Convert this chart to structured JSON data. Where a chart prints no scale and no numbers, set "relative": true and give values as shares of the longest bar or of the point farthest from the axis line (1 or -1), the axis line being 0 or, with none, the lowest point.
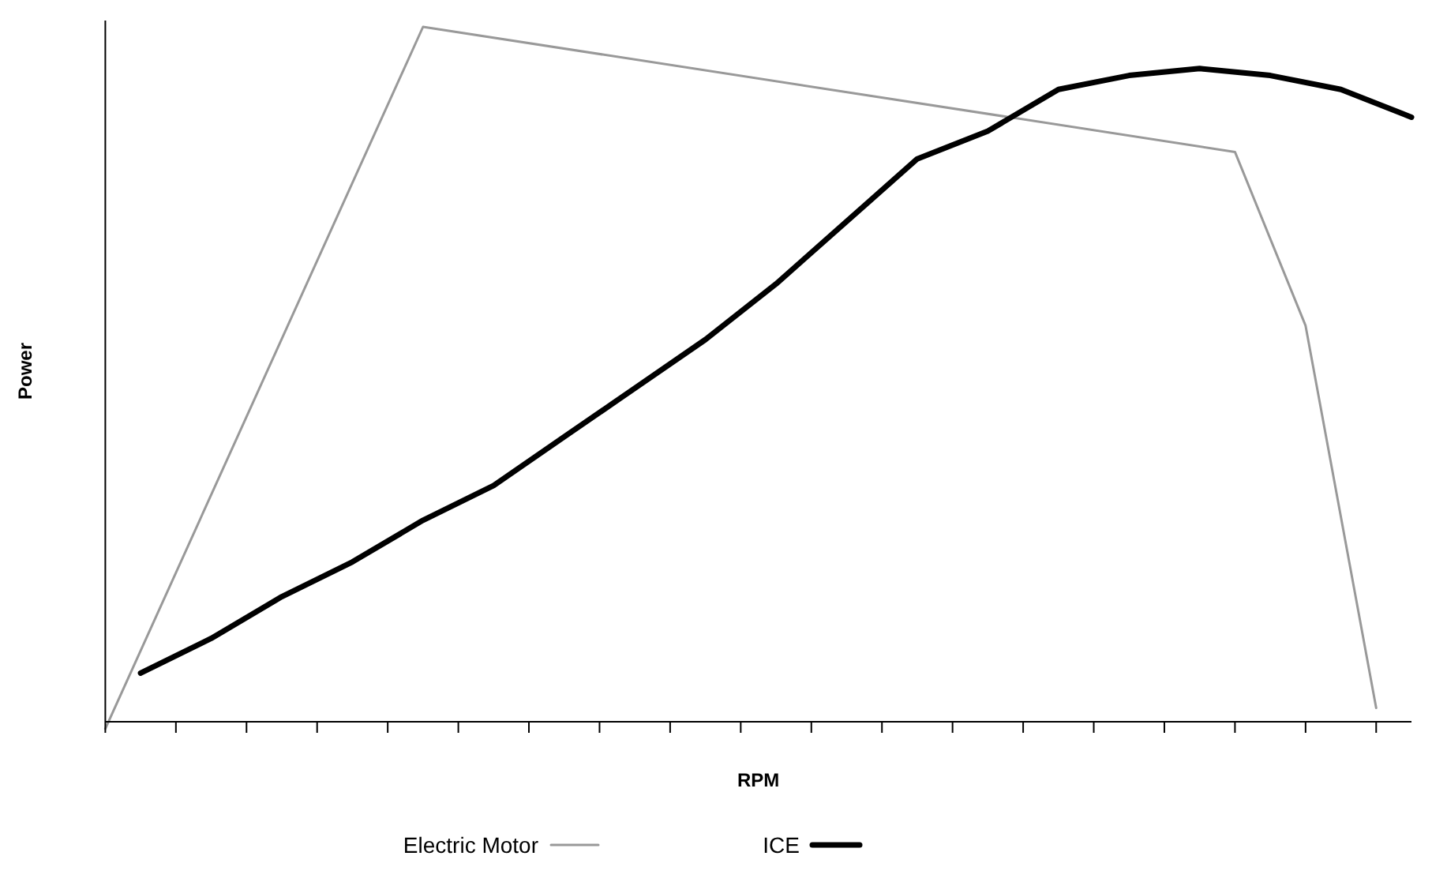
{
  "chart_data": {
    "type": "line",
    "xlabel": "RPM",
    "ylabel": "Power",
    "relative": true,
    "categories": [
      null,
      null,
      null,
      null,
      null,
      null,
      null,
      null,
      null,
      null,
      null,
      null,
      null,
      null,
      null,
      null,
      null,
      null,
      null,
      null,
      null,
      null,
      null,
      null,
      null,
      null,
      null,
      null,
      null,
      null,
      null,
      null,
      null,
      null,
      null,
      null,
      null,
      null
    ],
    "legend": "bottom",
    "series": [
      {
        "name": "Electric Motor",
        "color": "#999999",
        "values": [
          -0.01,
          null,
          null,
          null,
          null,
          null,
          null,
          null,
          null,
          1,
          null,
          null,
          null,
          null,
          null,
          null,
          null,
          null,
          null,
          null,
          null,
          null,
          null,
          null,
          null,
          null,
          null,
          null,
          null,
          null,
          null,
          null,
          0.82,
          null,
          0.57,
          null,
          0.02,
          null
        ]
      },
      {
        "name": "ICE",
        "color": "#000000",
        "values": [
          null,
          0.07,
          null,
          0.12,
          null,
          0.18,
          null,
          0.23,
          null,
          0.29,
          null,
          0.34,
          null,
          0.41,
          null,
          0.48,
          null,
          0.55,
          null,
          0.63,
          null,
          0.72,
          null,
          0.81,
          null,
          0.85,
          null,
          0.91,
          null,
          0.93,
          null,
          0.94,
          null,
          0.93,
          null,
          0.91,
          null,
          0.87
        ]
      }
    ]
  }
}
